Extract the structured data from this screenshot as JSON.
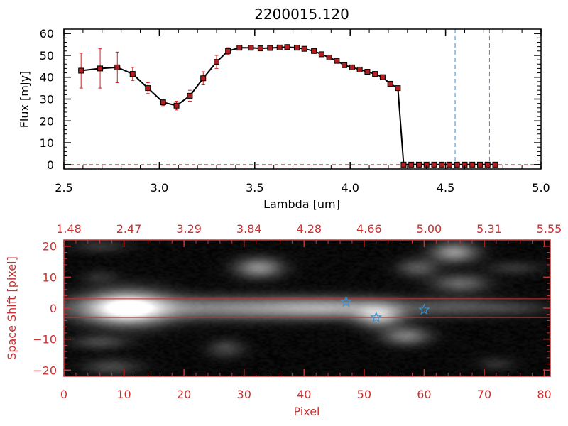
{
  "colors": {
    "spectrum_line": "#000000",
    "marker_fill": "#b02020",
    "error_bar": "#d02020",
    "dashed_line": "#3a90d0",
    "red_axes": "#c83232",
    "star": "#3a90d0"
  },
  "chart_data": [
    {
      "type": "line",
      "title": "2200015.120",
      "xlabel": "Lambda [um]",
      "ylabel": "Flux [mJy]",
      "xlim": [
        2.5,
        5.0
      ],
      "ylim": [
        -2,
        62
      ],
      "xticks": [
        2.5,
        3.0,
        3.5,
        4.0,
        4.5,
        5.0
      ],
      "xtick_labels": [
        "2.5",
        "3.0",
        "3.5",
        "4.0",
        "4.5",
        "5.0"
      ],
      "yticks": [
        0,
        10,
        20,
        30,
        40,
        50,
        60
      ],
      "ytick_labels": [
        "0",
        "10",
        "20",
        "30",
        "40",
        "50",
        "60"
      ],
      "grid": false,
      "series": [
        {
          "x": [
            2.59,
            2.69,
            2.78,
            2.86,
            2.94,
            3.02,
            3.09,
            3.16,
            3.23,
            3.3,
            3.36,
            3.42,
            3.48,
            3.53,
            3.58,
            3.63,
            3.67,
            3.72,
            3.76,
            3.81,
            3.85,
            3.89,
            3.93,
            3.97,
            4.01,
            4.05,
            4.09,
            4.13,
            4.17,
            4.21,
            4.25,
            4.28,
            4.32,
            4.36,
            4.4,
            4.44,
            4.48,
            4.52,
            4.56,
            4.6,
            4.64,
            4.68,
            4.72,
            4.76
          ],
          "y": [
            43,
            44,
            44.5,
            41.5,
            35,
            28.5,
            27,
            31.5,
            39.5,
            47,
            52,
            53.5,
            53.5,
            53.2,
            53.4,
            53.6,
            53.8,
            53.5,
            53,
            52,
            50.5,
            49,
            47.5,
            45.5,
            44.5,
            43.5,
            42.5,
            41.5,
            40,
            37,
            35,
            0,
            0,
            0,
            0,
            0,
            0,
            0,
            0,
            0,
            0,
            0,
            0,
            0
          ],
          "yerr": [
            8,
            9,
            7,
            3,
            2.5,
            1.5,
            2,
            2.5,
            3,
            3,
            1.5,
            0.8,
            0.6,
            0.6,
            0.6,
            0.6,
            0.6,
            0.6,
            0.6,
            0.6,
            0.6,
            0.6,
            0.6,
            0.6,
            0.6,
            0.6,
            0.6,
            0.6,
            0.6,
            0.8,
            1,
            0.3,
            0.3,
            0.3,
            0.3,
            0.3,
            0.3,
            0.3,
            0.3,
            0.3,
            0.3,
            0.3,
            0.3,
            0.3
          ]
        }
      ],
      "vlines": [
        4.55,
        4.73
      ],
      "hline": 0
    },
    {
      "type": "heatmap",
      "xlabel": "Pixel",
      "ylabel": "Space Shift [pixel]",
      "xlim": [
        0,
        81
      ],
      "ylim": [
        -22,
        22
      ],
      "xticks": [
        0,
        10,
        20,
        30,
        40,
        50,
        60,
        70,
        80
      ],
      "xtick_labels": [
        "0",
        "10",
        "20",
        "30",
        "40",
        "50",
        "60",
        "70",
        "80"
      ],
      "yticks": [
        -20,
        -10,
        0,
        10,
        20
      ],
      "ytick_labels": [
        "−20",
        "−10",
        "0",
        "10",
        "20"
      ],
      "top_xticks": [
        0,
        10,
        20,
        30,
        40,
        50,
        60,
        70,
        80
      ],
      "top_xtick_labels": [
        "1.48",
        "2.47",
        "3.29",
        "3.84",
        "4.28",
        "4.66",
        "5.00",
        "5.31",
        "5.55"
      ],
      "hlines": [
        3,
        -3
      ],
      "stars": [
        {
          "x": 47,
          "y": 2
        },
        {
          "x": 52,
          "y": -3
        },
        {
          "x": 60,
          "y": -0.5
        }
      ],
      "blobs": [
        {
          "x": 10.5,
          "y": 0,
          "sx": 4.5,
          "sy": 3.5,
          "v": 1.0
        },
        {
          "x": 28,
          "y": 0,
          "sx": 18,
          "sy": 2.5,
          "v": 0.42
        },
        {
          "x": 45,
          "y": 0,
          "sx": 8,
          "sy": 2.2,
          "v": 0.32
        },
        {
          "x": 52.5,
          "y": -2.5,
          "sx": 2.5,
          "sy": 2.5,
          "v": 0.55
        },
        {
          "x": 66,
          "y": 0.5,
          "sx": 5,
          "sy": 2,
          "v": 0.18
        },
        {
          "x": 75,
          "y": 0,
          "sx": 4,
          "sy": 1.6,
          "v": 0.12
        },
        {
          "x": 32.5,
          "y": 13,
          "sx": 2.5,
          "sy": 2.2,
          "v": 0.45
        },
        {
          "x": 65,
          "y": 18,
          "sx": 2.5,
          "sy": 2.2,
          "v": 0.48
        },
        {
          "x": 59,
          "y": 13,
          "sx": 2.2,
          "sy": 2,
          "v": 0.25
        },
        {
          "x": 66,
          "y": 8,
          "sx": 3,
          "sy": 2,
          "v": 0.3
        },
        {
          "x": 57,
          "y": -9,
          "sx": 2.5,
          "sy": 2,
          "v": 0.38
        },
        {
          "x": 6,
          "y": -11,
          "sx": 3,
          "sy": 1.6,
          "v": 0.18
        },
        {
          "x": 27,
          "y": -13,
          "sx": 2,
          "sy": 2,
          "v": 0.18
        },
        {
          "x": 8,
          "y": -19,
          "sx": 3,
          "sy": 1.8,
          "v": 0.18
        },
        {
          "x": 6,
          "y": 20,
          "sx": 3,
          "sy": 1.5,
          "v": 0.12
        },
        {
          "x": 6,
          "y": 10,
          "sx": 2,
          "sy": 1.5,
          "v": 0.1
        },
        {
          "x": 75,
          "y": 13,
          "sx": 3,
          "sy": 1.5,
          "v": 0.12
        },
        {
          "x": 72,
          "y": -18,
          "sx": 2,
          "sy": 1.5,
          "v": 0.1
        }
      ]
    }
  ]
}
